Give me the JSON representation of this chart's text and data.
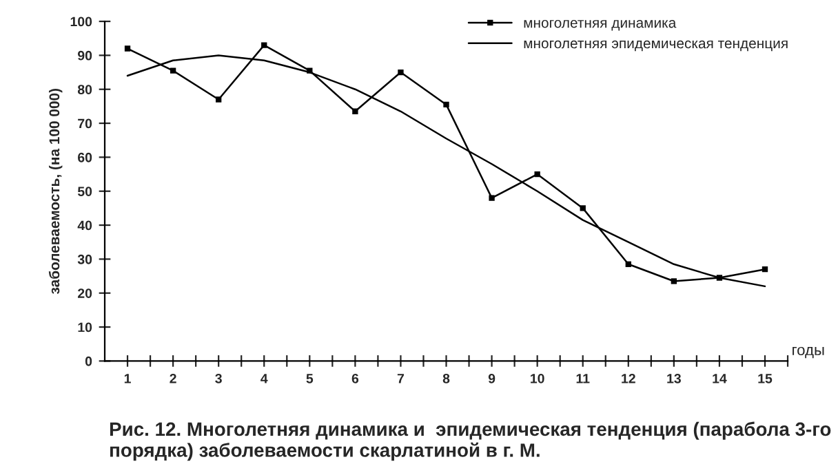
{
  "chart_data": {
    "type": "line",
    "title": "Рис. 12. Многолетняя динамика и  эпидемическая тенденция (парабола 3-го порядка) заболеваемости скарлатиной в г. М.",
    "xlabel": "годы",
    "ylabel": "заболеваемость, (на 100 000)",
    "categories": [
      "1",
      "2",
      "3",
      "4",
      "5",
      "6",
      "7",
      "8",
      "9",
      "10",
      "11",
      "12",
      "13",
      "14",
      "15"
    ],
    "series": [
      {
        "name": "многолетняя динамика",
        "color": "#000000",
        "marker": "square",
        "values": [
          92,
          85.5,
          77,
          93,
          85.5,
          73.5,
          85,
          75.5,
          48,
          55,
          45,
          28.5,
          23.5,
          24.5,
          27
        ]
      },
      {
        "name": "многолетняя эпидемическая тенденция",
        "color": "#000000",
        "marker": "none",
        "values": [
          84,
          88.5,
          90,
          88.5,
          85,
          80,
          73.5,
          65.5,
          58,
          50,
          41.5,
          35,
          28.5,
          24.5,
          22
        ]
      }
    ],
    "ylim": [
      0,
      100
    ],
    "yticks": [
      0,
      10,
      20,
      30,
      40,
      50,
      60,
      70,
      80,
      90,
      100
    ],
    "grid": false,
    "legend": "top right",
    "line_style": "solid"
  }
}
